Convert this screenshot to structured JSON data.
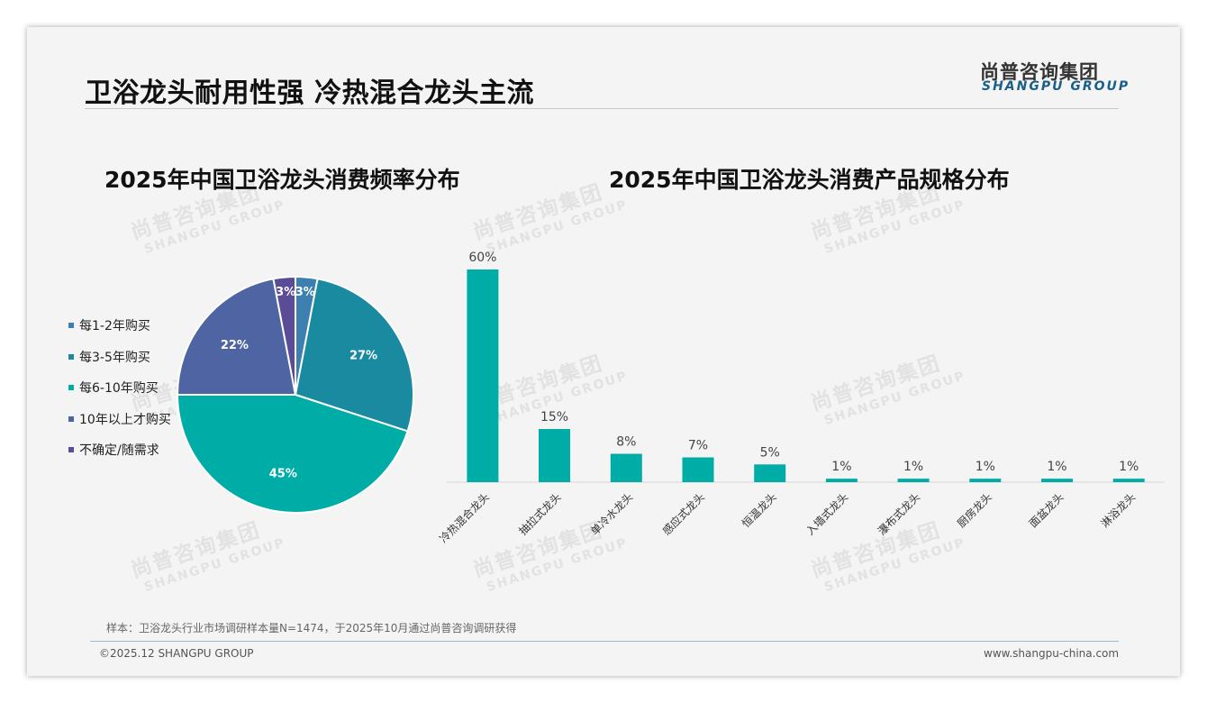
{
  "header": {
    "title": "卫浴龙头耐用性强 冷热混合龙头主流",
    "logo_cn": "尚普咨询集团",
    "logo_en": "SHANGPU GROUP"
  },
  "watermark": {
    "cn": "尚普咨询集团",
    "en": "SHANGPU GROUP"
  },
  "footer": {
    "note": "样本：卫浴龙头行业市场调研样本量N=1474，于2025年10月通过尚普咨询调研获得",
    "copyright": "©2025.12 SHANGPU GROUP",
    "website": "www.shangpu-china.com"
  },
  "chart_data": [
    {
      "type": "pie",
      "title": "2025年中国卫浴龙头消费频率分布",
      "legend_position": "left",
      "start_angle_deg": 0,
      "direction": "clockwise",
      "categories": [
        "每1-2年购买",
        "每3-5年购买",
        "每6-10年购买",
        "10年以上才购买",
        "不确定/随需求"
      ],
      "values": [
        3,
        27,
        45,
        22,
        3
      ],
      "labels": [
        "3%",
        "27%",
        "45%",
        "22%",
        "3%"
      ],
      "colors": [
        "#3c7fb0",
        "#1a8aa0",
        "#00ada6",
        "#4f64a2",
        "#5a4c96"
      ]
    },
    {
      "type": "bar",
      "title": "2025年中国卫浴龙头消费产品规格分布",
      "categories": [
        "冷热混合龙头",
        "抽拉式龙头",
        "单冷水龙头",
        "感应式龙头",
        "恒温龙头",
        "入墙式龙头",
        "瀑布式龙头",
        "厨房龙头",
        "面盆龙头",
        "淋浴龙头"
      ],
      "values": [
        60,
        15,
        8,
        7,
        5,
        1,
        1,
        1,
        1,
        1
      ],
      "labels": [
        "60%",
        "15%",
        "8%",
        "7%",
        "5%",
        "1%",
        "1%",
        "1%",
        "1%",
        "1%"
      ],
      "ylim": [
        0,
        60
      ],
      "color": "#00ada6",
      "grid": false
    }
  ]
}
